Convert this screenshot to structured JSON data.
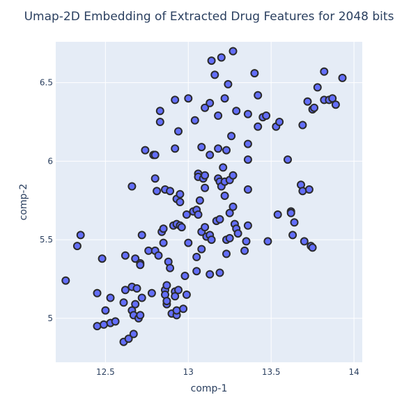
{
  "chart_data": {
    "type": "scatter",
    "title": "Umap-2D Embedding of Extracted Drug Features for 2048 bits",
    "xlabel": "comp-1",
    "ylabel": "comp-2",
    "xlim": [
      12.2,
      14.05
    ],
    "ylim": [
      4.72,
      6.76
    ],
    "xticks": [
      12.5,
      13,
      13.5,
      14
    ],
    "xtick_labels": [
      "12.5",
      "13",
      "13.5",
      "14"
    ],
    "yticks": [
      5,
      5.5,
      6,
      6.5
    ],
    "ytick_labels": [
      "5",
      "5.5",
      "6",
      "6.5"
    ],
    "grid": true,
    "plot_bgcolor": "#e5ecf6",
    "marker_color": "#636efa",
    "marker_line_color": "#2a2a2a",
    "points": [
      [
        12.26,
        5.24
      ],
      [
        12.33,
        5.46
      ],
      [
        12.35,
        5.53
      ],
      [
        12.45,
        5.16
      ],
      [
        12.45,
        4.95
      ],
      [
        12.48,
        5.38
      ],
      [
        12.49,
        4.96
      ],
      [
        12.5,
        5.05
      ],
      [
        12.53,
        4.97
      ],
      [
        12.53,
        5.13
      ],
      [
        12.56,
        4.98
      ],
      [
        12.61,
        5.1
      ],
      [
        12.61,
        4.85
      ],
      [
        12.62,
        5.18
      ],
      [
        12.62,
        5.4
      ],
      [
        12.64,
        4.87
      ],
      [
        12.66,
        5.84
      ],
      [
        12.66,
        5.05
      ],
      [
        12.66,
        5.2
      ],
      [
        12.67,
        5.02
      ],
      [
        12.67,
        4.9
      ],
      [
        12.68,
        5.09
      ],
      [
        12.68,
        5.38
      ],
      [
        12.69,
        5.19
      ],
      [
        12.7,
        5.0
      ],
      [
        12.71,
        5.02
      ],
      [
        12.71,
        5.35
      ],
      [
        12.71,
        5.34
      ],
      [
        12.72,
        5.53
      ],
      [
        12.72,
        5.13
      ],
      [
        12.74,
        6.07
      ],
      [
        12.76,
        5.43
      ],
      [
        12.78,
        5.16
      ],
      [
        12.79,
        6.04
      ],
      [
        12.8,
        5.89
      ],
      [
        12.8,
        6.04
      ],
      [
        12.8,
        5.43
      ],
      [
        12.81,
        5.81
      ],
      [
        12.82,
        5.4
      ],
      [
        12.83,
        6.32
      ],
      [
        12.83,
        6.25
      ],
      [
        12.84,
        5.55
      ],
      [
        12.85,
        5.48
      ],
      [
        12.85,
        5.57
      ],
      [
        12.86,
        5.18
      ],
      [
        12.86,
        5.82
      ],
      [
        12.86,
        5.15
      ],
      [
        12.87,
        5.09
      ],
      [
        12.87,
        5.11
      ],
      [
        12.87,
        5.21
      ],
      [
        12.88,
        5.36
      ],
      [
        12.89,
        5.81
      ],
      [
        12.89,
        5.32
      ],
      [
        12.9,
        5.03
      ],
      [
        12.91,
        5.59
      ],
      [
        12.92,
        6.08
      ],
      [
        12.92,
        6.39
      ],
      [
        12.92,
        5.17
      ],
      [
        12.92,
        5.14
      ],
      [
        12.93,
        5.02
      ],
      [
        12.93,
        5.05
      ],
      [
        12.93,
        5.6
      ],
      [
        12.93,
        5.76
      ],
      [
        12.94,
        6.19
      ],
      [
        12.94,
        5.18
      ],
      [
        12.95,
        5.79
      ],
      [
        12.95,
        5.74
      ],
      [
        12.95,
        5.59
      ],
      [
        12.96,
        5.58
      ],
      [
        12.97,
        5.06
      ],
      [
        12.98,
        5.27
      ],
      [
        12.99,
        5.15
      ],
      [
        12.99,
        5.66
      ],
      [
        13.0,
        5.48
      ],
      [
        13.0,
        6.4
      ],
      [
        13.03,
        5.68
      ],
      [
        13.04,
        6.26
      ],
      [
        13.05,
        5.3
      ],
      [
        13.05,
        5.69
      ],
      [
        13.05,
        5.39
      ],
      [
        13.06,
        5.66
      ],
      [
        13.06,
        5.92
      ],
      [
        13.06,
        5.9
      ],
      [
        13.07,
        5.75
      ],
      [
        13.08,
        5.44
      ],
      [
        13.08,
        5.55
      ],
      [
        13.08,
        6.09
      ],
      [
        13.09,
        5.89
      ],
      [
        13.1,
        5.58
      ],
      [
        13.1,
        5.83
      ],
      [
        13.1,
        5.91
      ],
      [
        13.1,
        6.34
      ],
      [
        13.11,
        5.52
      ],
      [
        13.13,
        5.53
      ],
      [
        13.13,
        6.04
      ],
      [
        13.13,
        6.37
      ],
      [
        13.13,
        5.28
      ],
      [
        13.14,
        5.5
      ],
      [
        13.14,
        6.64
      ],
      [
        13.16,
        6.55
      ],
      [
        13.17,
        5.62
      ],
      [
        13.18,
        6.08
      ],
      [
        13.18,
        5.89
      ],
      [
        13.18,
        6.29
      ],
      [
        13.19,
        5.87
      ],
      [
        13.19,
        5.63
      ],
      [
        13.19,
        5.29
      ],
      [
        13.2,
        6.66
      ],
      [
        13.2,
        5.84
      ],
      [
        13.21,
        5.96
      ],
      [
        13.22,
        6.4
      ],
      [
        13.22,
        5.78
      ],
      [
        13.22,
        5.87
      ],
      [
        13.23,
        6.07
      ],
      [
        13.23,
        5.41
      ],
      [
        13.23,
        5.5
      ],
      [
        13.24,
        6.49
      ],
      [
        13.25,
        5.67
      ],
      [
        13.25,
        5.51
      ],
      [
        13.25,
        5.88
      ],
      [
        13.26,
        6.16
      ],
      [
        13.27,
        5.91
      ],
      [
        13.27,
        5.71
      ],
      [
        13.27,
        6.7
      ],
      [
        13.28,
        5.6
      ],
      [
        13.29,
        5.57
      ],
      [
        13.29,
        6.32
      ],
      [
        13.3,
        5.54
      ],
      [
        13.34,
        5.43
      ],
      [
        13.35,
        5.49
      ],
      [
        13.36,
        6.11
      ],
      [
        13.36,
        6.01
      ],
      [
        13.36,
        5.82
      ],
      [
        13.36,
        5.59
      ],
      [
        13.36,
        6.3
      ],
      [
        13.4,
        6.56
      ],
      [
        13.42,
        6.22
      ],
      [
        13.42,
        6.42
      ],
      [
        13.45,
        6.28
      ],
      [
        13.47,
        6.29
      ],
      [
        13.48,
        5.49
      ],
      [
        13.53,
        6.22
      ],
      [
        13.54,
        5.66
      ],
      [
        13.55,
        6.25
      ],
      [
        13.6,
        6.01
      ],
      [
        13.62,
        5.68
      ],
      [
        13.63,
        5.53
      ],
      [
        13.64,
        5.61
      ],
      [
        13.62,
        5.67
      ],
      [
        13.68,
        5.85
      ],
      [
        13.69,
        6.23
      ],
      [
        13.69,
        5.81
      ],
      [
        13.7,
        5.49
      ],
      [
        13.72,
        6.38
      ],
      [
        13.73,
        5.82
      ],
      [
        13.74,
        5.46
      ],
      [
        13.75,
        6.33
      ],
      [
        13.75,
        5.45
      ],
      [
        13.76,
        6.34
      ],
      [
        13.78,
        6.47
      ],
      [
        13.82,
        6.39
      ],
      [
        13.82,
        6.57
      ],
      [
        13.85,
        6.39
      ],
      [
        13.87,
        6.4
      ],
      [
        13.89,
        6.36
      ],
      [
        13.93,
        6.53
      ]
    ]
  }
}
